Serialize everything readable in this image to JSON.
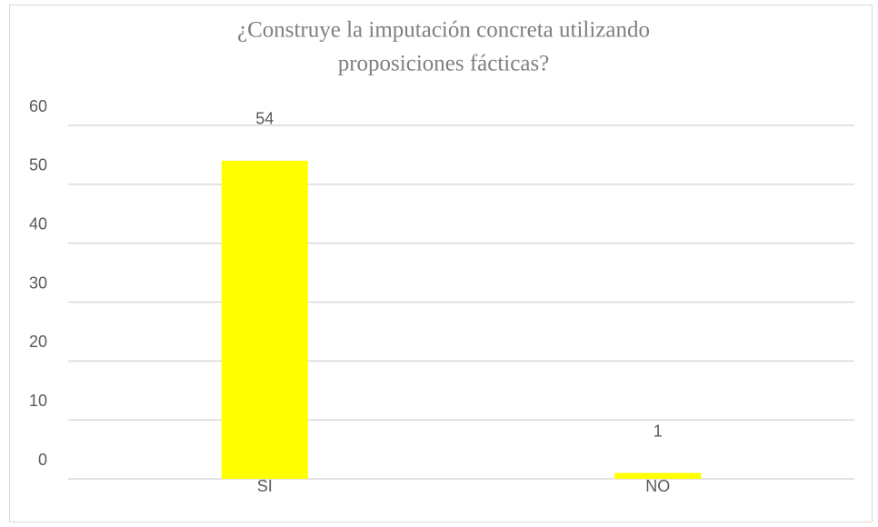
{
  "chart_data": {
    "type": "bar",
    "title_lines": [
      "¿Construye la imputación concreta utilizando",
      "proposiciones fácticas?"
    ],
    "categories": [
      "SI",
      "NO"
    ],
    "values": [
      54,
      1
    ],
    "color": "#ffff00",
    "ylim": [
      0,
      60
    ],
    "yticks": [
      0,
      10,
      20,
      30,
      40,
      50,
      60
    ],
    "grid": true
  }
}
